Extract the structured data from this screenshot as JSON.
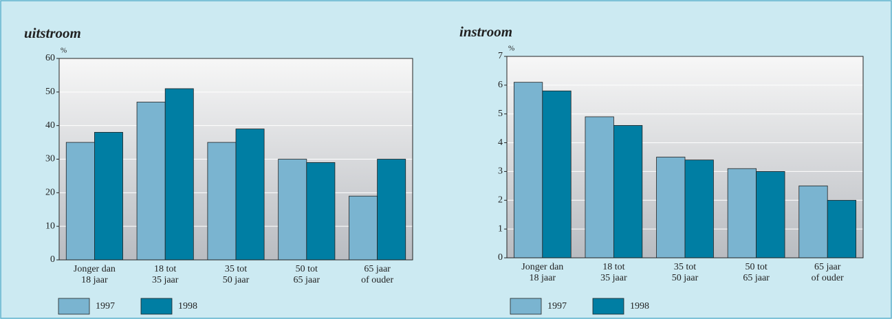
{
  "chart_data": [
    {
      "type": "bar",
      "title": "uitstroom",
      "ylabel": "%",
      "categories": [
        [
          "Jonger dan",
          "18 jaar"
        ],
        [
          "18 tot",
          "35 jaar"
        ],
        [
          "35 tot",
          "50 jaar"
        ],
        [
          "50 tot",
          "65 jaar"
        ],
        [
          "65 jaar",
          "of ouder"
        ]
      ],
      "series": [
        {
          "name": "1997",
          "color": "#7ab4d0",
          "values": [
            35,
            47,
            35,
            30,
            19
          ]
        },
        {
          "name": "1998",
          "color": "#007ea3",
          "values": [
            38,
            51,
            39,
            29,
            30
          ]
        }
      ],
      "ylim": [
        0,
        60
      ],
      "yticks": [
        0,
        10,
        20,
        30,
        40,
        50,
        60
      ],
      "grid": true,
      "legend": "bottom-left"
    },
    {
      "type": "bar",
      "title": "instroom",
      "ylabel": "%",
      "categories": [
        [
          "Jonger dan",
          "18 jaar"
        ],
        [
          "18 tot",
          "35 jaar"
        ],
        [
          "35 tot",
          "50 jaar"
        ],
        [
          "50 tot",
          "65 jaar"
        ],
        [
          "65 jaar",
          "of ouder"
        ]
      ],
      "series": [
        {
          "name": "1997",
          "color": "#7ab4d0",
          "values": [
            6.1,
            4.9,
            3.5,
            3.1,
            2.5
          ]
        },
        {
          "name": "1998",
          "color": "#007ea3",
          "values": [
            5.8,
            4.6,
            3.4,
            3.0,
            2.0
          ]
        }
      ],
      "ylim": [
        0,
        7
      ],
      "yticks": [
        0,
        1,
        2,
        3,
        4,
        5,
        6,
        7
      ],
      "grid": true,
      "legend": "bottom-left"
    }
  ]
}
